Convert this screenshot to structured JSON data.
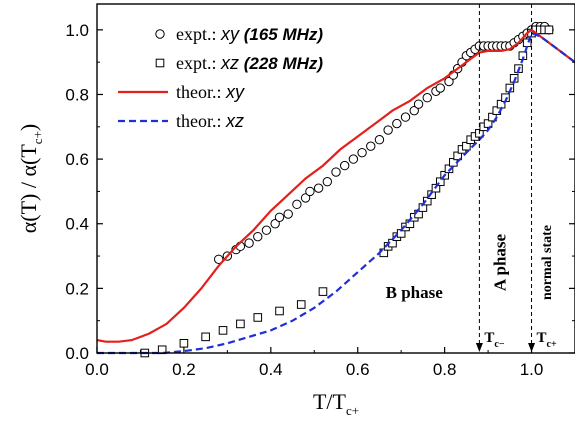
{
  "chart_data": {
    "type": "scatter",
    "xlabel": "T/T",
    "xlabel_sub": "c+",
    "ylabel": "α(T) / α(T",
    "ylabel_sub": "c+",
    "ylabel_close": ")",
    "xlim": [
      0.0,
      1.1
    ],
    "ylim": [
      0.0,
      1.08
    ],
    "xticks": [
      0.0,
      0.2,
      0.4,
      0.6,
      0.8,
      1.0
    ],
    "xtick_labels": [
      "0.0",
      "0.2",
      "0.4",
      "0.6",
      "0.8",
      "1.0"
    ],
    "yticks": [
      0.0,
      0.2,
      0.4,
      0.6,
      0.8,
      1.0
    ],
    "ytick_labels": [
      "0.0",
      "0.2",
      "0.4",
      "0.6",
      "0.8",
      "1.0"
    ],
    "grid": false,
    "legend_position": "top-left",
    "legend": [
      {
        "prefix": "expt.: ",
        "var": "xy",
        "suffix": " (165 MHz)",
        "marker": "circle"
      },
      {
        "prefix": "expt.: ",
        "var": "xz",
        "suffix": " (228 MHz)",
        "marker": "square"
      },
      {
        "prefix": "theor.: ",
        "var": "xy",
        "suffix": "",
        "line": "solid",
        "color": "#e3201b"
      },
      {
        "prefix": "theor.: ",
        "var": "xz",
        "suffix": "",
        "line": "dashed",
        "color": "#1f2fd6"
      }
    ],
    "vlines": [
      {
        "x": 0.88,
        "label": "T",
        "label_sub": "c−"
      },
      {
        "x": 1.0,
        "label": "T",
        "label_sub": "c+"
      }
    ],
    "region_labels": [
      {
        "text": "B phase",
        "x": 0.73,
        "y": 0.17
      },
      {
        "text": "A phase",
        "x": 0.94,
        "y": 0.28
      },
      {
        "text": "normal state",
        "x": 1.045,
        "y": 0.28
      }
    ],
    "series": [
      {
        "name": "expt.: xy (165 MHz)",
        "kind": "markers",
        "marker": "circle",
        "points": [
          [
            0.28,
            0.29
          ],
          [
            0.3,
            0.3
          ],
          [
            0.32,
            0.32
          ],
          [
            0.33,
            0.33
          ],
          [
            0.35,
            0.34
          ],
          [
            0.37,
            0.36
          ],
          [
            0.39,
            0.38
          ],
          [
            0.41,
            0.4
          ],
          [
            0.42,
            0.42
          ],
          [
            0.44,
            0.43
          ],
          [
            0.46,
            0.46
          ],
          [
            0.48,
            0.48
          ],
          [
            0.49,
            0.5
          ],
          [
            0.51,
            0.51
          ],
          [
            0.53,
            0.53
          ],
          [
            0.55,
            0.56
          ],
          [
            0.57,
            0.58
          ],
          [
            0.59,
            0.6
          ],
          [
            0.61,
            0.62
          ],
          [
            0.63,
            0.64
          ],
          [
            0.65,
            0.66
          ],
          [
            0.67,
            0.69
          ],
          [
            0.69,
            0.71
          ],
          [
            0.71,
            0.73
          ],
          [
            0.73,
            0.75
          ],
          [
            0.74,
            0.77
          ],
          [
            0.76,
            0.79
          ],
          [
            0.78,
            0.81
          ],
          [
            0.79,
            0.82
          ],
          [
            0.81,
            0.84
          ],
          [
            0.82,
            0.86
          ],
          [
            0.83,
            0.88
          ],
          [
            0.84,
            0.9
          ],
          [
            0.85,
            0.92
          ],
          [
            0.86,
            0.93
          ],
          [
            0.87,
            0.94
          ],
          [
            0.88,
            0.95
          ],
          [
            0.89,
            0.95
          ],
          [
            0.9,
            0.95
          ],
          [
            0.91,
            0.95
          ],
          [
            0.92,
            0.95
          ],
          [
            0.93,
            0.95
          ],
          [
            0.94,
            0.95
          ],
          [
            0.95,
            0.95
          ],
          [
            0.96,
            0.96
          ],
          [
            0.97,
            0.97
          ],
          [
            0.98,
            0.98
          ],
          [
            0.99,
            0.99
          ],
          [
            1.0,
            1.0
          ],
          [
            1.01,
            1.01
          ],
          [
            1.02,
            1.01
          ],
          [
            1.03,
            1.01
          ],
          [
            1.04,
            1.0
          ]
        ]
      },
      {
        "name": "expt.: xz (228 MHz)",
        "kind": "markers",
        "marker": "square",
        "points": [
          [
            0.11,
            0.0
          ],
          [
            0.15,
            0.01
          ],
          [
            0.2,
            0.03
          ],
          [
            0.25,
            0.05
          ],
          [
            0.29,
            0.07
          ],
          [
            0.33,
            0.09
          ],
          [
            0.37,
            0.11
          ],
          [
            0.42,
            0.13
          ],
          [
            0.47,
            0.15
          ],
          [
            0.52,
            0.19
          ],
          [
            0.66,
            0.31
          ],
          [
            0.67,
            0.33
          ],
          [
            0.68,
            0.34
          ],
          [
            0.69,
            0.36
          ],
          [
            0.7,
            0.37
          ],
          [
            0.71,
            0.39
          ],
          [
            0.72,
            0.4
          ],
          [
            0.73,
            0.42
          ],
          [
            0.74,
            0.43
          ],
          [
            0.75,
            0.45
          ],
          [
            0.76,
            0.47
          ],
          [
            0.77,
            0.49
          ],
          [
            0.78,
            0.51
          ],
          [
            0.79,
            0.53
          ],
          [
            0.8,
            0.55
          ],
          [
            0.81,
            0.57
          ],
          [
            0.82,
            0.59
          ],
          [
            0.83,
            0.61
          ],
          [
            0.84,
            0.63
          ],
          [
            0.85,
            0.64
          ],
          [
            0.86,
            0.66
          ],
          [
            0.87,
            0.67
          ],
          [
            0.88,
            0.68
          ],
          [
            0.89,
            0.7
          ],
          [
            0.9,
            0.71
          ],
          [
            0.91,
            0.73
          ],
          [
            0.92,
            0.75
          ],
          [
            0.93,
            0.77
          ],
          [
            0.94,
            0.79
          ],
          [
            0.95,
            0.82
          ],
          [
            0.96,
            0.85
          ],
          [
            0.97,
            0.88
          ],
          [
            0.98,
            0.92
          ],
          [
            0.99,
            0.96
          ],
          [
            1.0,
            0.99
          ],
          [
            1.01,
            1.0
          ],
          [
            1.02,
            1.0
          ],
          [
            1.03,
            1.0
          ],
          [
            1.04,
            1.0
          ]
        ]
      },
      {
        "name": "theor.: xy",
        "kind": "line",
        "color": "#e3201b",
        "dash": "solid",
        "points": [
          [
            0.0,
            0.04
          ],
          [
            0.02,
            0.035
          ],
          [
            0.05,
            0.035
          ],
          [
            0.08,
            0.04
          ],
          [
            0.12,
            0.06
          ],
          [
            0.16,
            0.09
          ],
          [
            0.2,
            0.14
          ],
          [
            0.24,
            0.2
          ],
          [
            0.28,
            0.27
          ],
          [
            0.32,
            0.33
          ],
          [
            0.36,
            0.38
          ],
          [
            0.4,
            0.44
          ],
          [
            0.44,
            0.49
          ],
          [
            0.48,
            0.54
          ],
          [
            0.52,
            0.58
          ],
          [
            0.56,
            0.63
          ],
          [
            0.6,
            0.67
          ],
          [
            0.64,
            0.71
          ],
          [
            0.68,
            0.75
          ],
          [
            0.72,
            0.78
          ],
          [
            0.76,
            0.82
          ],
          [
            0.8,
            0.85
          ],
          [
            0.84,
            0.89
          ],
          [
            0.86,
            0.91
          ],
          [
            0.87,
            0.92
          ],
          [
            0.88,
            0.93
          ],
          [
            0.9,
            0.935
          ],
          [
            0.93,
            0.935
          ],
          [
            0.95,
            0.94
          ],
          [
            0.97,
            0.96
          ],
          [
            0.99,
            0.99
          ],
          [
            1.0,
            1.0
          ],
          [
            1.02,
            0.98
          ],
          [
            1.05,
            0.95
          ],
          [
            1.08,
            0.92
          ],
          [
            1.1,
            0.9
          ]
        ]
      },
      {
        "name": "theor.: xz",
        "kind": "line",
        "color": "#1f2fd6",
        "dash": "dashed",
        "points": [
          [
            0.0,
            0.0
          ],
          [
            0.15,
            0.0
          ],
          [
            0.2,
            0.006
          ],
          [
            0.25,
            0.015
          ],
          [
            0.3,
            0.03
          ],
          [
            0.35,
            0.05
          ],
          [
            0.4,
            0.07
          ],
          [
            0.45,
            0.1
          ],
          [
            0.5,
            0.14
          ],
          [
            0.55,
            0.19
          ],
          [
            0.6,
            0.25
          ],
          [
            0.65,
            0.31
          ],
          [
            0.7,
            0.38
          ],
          [
            0.75,
            0.46
          ],
          [
            0.8,
            0.55
          ],
          [
            0.85,
            0.62
          ],
          [
            0.88,
            0.66
          ],
          [
            0.9,
            0.69
          ],
          [
            0.92,
            0.73
          ],
          [
            0.94,
            0.78
          ],
          [
            0.96,
            0.84
          ],
          [
            0.98,
            0.91
          ],
          [
            0.99,
            0.95
          ],
          [
            1.0,
            0.99
          ],
          [
            1.02,
            0.98
          ],
          [
            1.05,
            0.95
          ],
          [
            1.08,
            0.92
          ],
          [
            1.1,
            0.9
          ]
        ]
      }
    ]
  }
}
